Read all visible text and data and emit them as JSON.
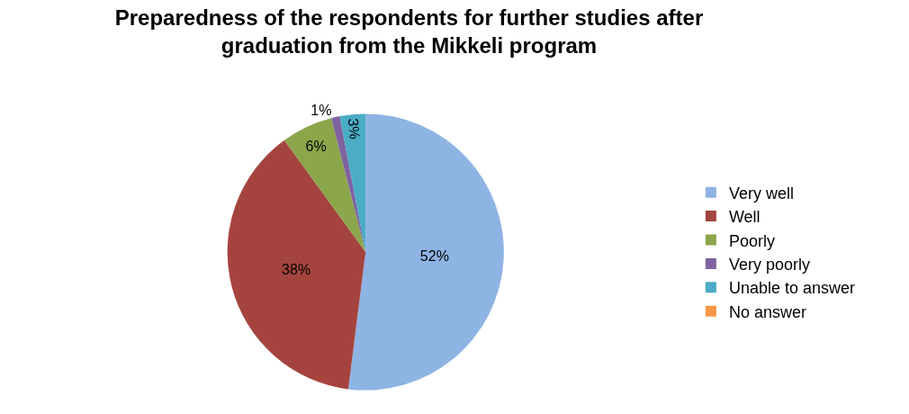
{
  "chart_data": {
    "type": "pie",
    "title": "Preparedness of the respondents for further studies after graduation from the Mikkeli program",
    "categories": [
      "Very well",
      "Well",
      "Poorly",
      "Very poorly",
      "Unable to answer",
      "No answer"
    ],
    "values": [
      52,
      38,
      6,
      1,
      3,
      0
    ],
    "value_labels": [
      "52%",
      "38%",
      "6%",
      "1%",
      "3%",
      null
    ],
    "colors": [
      "#8eb4e3",
      "#a5443f",
      "#8ca64b",
      "#7f63a1",
      "#4aacc5",
      "#f79646"
    ],
    "legend": "right"
  }
}
